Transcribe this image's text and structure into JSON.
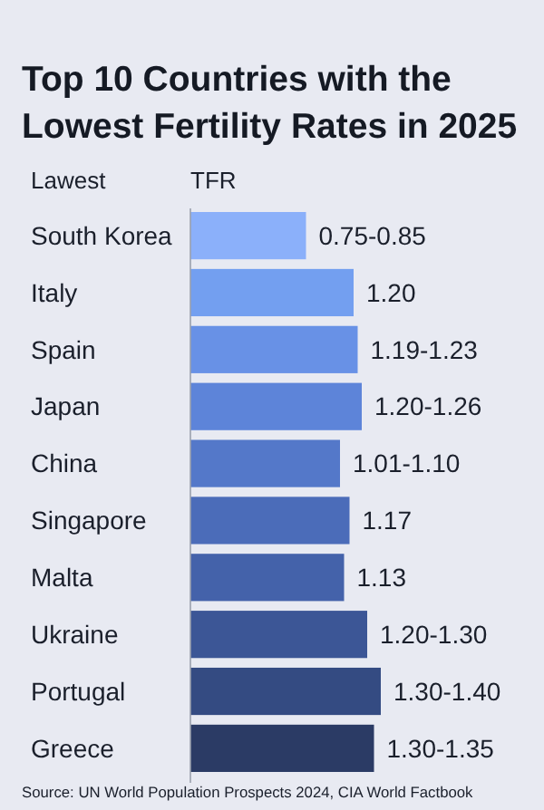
{
  "chart_data": {
    "type": "bar",
    "orientation": "horizontal",
    "title": "Top 10 Countries with the Lowest Fertility Rates in 2025",
    "ylabel": "Lawest",
    "xlabel": "TFR",
    "categories": [
      "South Korea",
      "Italy",
      "Spain",
      "Japan",
      "China",
      "Singapore",
      "Malta",
      "Ukraine",
      "Portugal",
      "Greece"
    ],
    "values": [
      0.85,
      1.2,
      1.23,
      1.26,
      1.1,
      1.17,
      1.13,
      1.3,
      1.4,
      1.35
    ],
    "value_labels": [
      "0.75-0.85",
      "1.20",
      "1.19-1.23",
      "1.20-1.26",
      "1.01-1.10",
      "1.17",
      "1.13",
      "1.20-1.30",
      "1.30-1.40",
      "1.30-1.35"
    ],
    "colors": [
      "#8bb0fa",
      "#739ff0",
      "#6891e6",
      "#5d84d9",
      "#5478c9",
      "#4b6cb9",
      "#4462aa",
      "#3c5696",
      "#344b82",
      "#2b3b65"
    ],
    "annotations": [
      "Source: UN World Population Prospects 2024, CIA World Factbook"
    ]
  }
}
